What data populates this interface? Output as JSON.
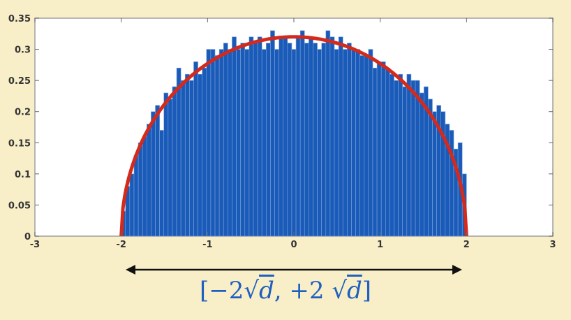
{
  "chart_data": {
    "type": "bar",
    "title": "",
    "xlabel": "",
    "ylabel": "",
    "xlim": [
      -3,
      3
    ],
    "ylim": [
      0,
      0.35
    ],
    "xticks": [
      "-3",
      "-2",
      "-1",
      "0",
      "1",
      "2",
      "3"
    ],
    "yticks": [
      "0",
      "0.05",
      "0.1",
      "0.15",
      "0.2",
      "0.25",
      "0.3",
      "0.35"
    ],
    "bin_range": [
      -2,
      2
    ],
    "bin_values": [
      0.04,
      0.08,
      0.1,
      0.13,
      0.15,
      0.16,
      0.18,
      0.2,
      0.21,
      0.17,
      0.23,
      0.22,
      0.24,
      0.27,
      0.25,
      0.26,
      0.25,
      0.28,
      0.26,
      0.27,
      0.3,
      0.3,
      0.29,
      0.3,
      0.31,
      0.3,
      0.32,
      0.3,
      0.31,
      0.3,
      0.32,
      0.31,
      0.32,
      0.3,
      0.31,
      0.33,
      0.3,
      0.32,
      0.32,
      0.31,
      0.3,
      0.32,
      0.33,
      0.31,
      0.32,
      0.31,
      0.3,
      0.31,
      0.33,
      0.32,
      0.3,
      0.32,
      0.3,
      0.31,
      0.3,
      0.3,
      0.29,
      0.29,
      0.3,
      0.27,
      0.28,
      0.28,
      0.27,
      0.26,
      0.25,
      0.26,
      0.24,
      0.26,
      0.25,
      0.25,
      0.23,
      0.24,
      0.22,
      0.2,
      0.21,
      0.2,
      0.18,
      0.17,
      0.14,
      0.15,
      0.1
    ],
    "curve": "semicircle",
    "curve_peak": 0.32,
    "grid": false,
    "bar_color": "#1a5ab8",
    "curve_color": "#d42a1c",
    "frame_color": "#a0a0a0"
  },
  "annotation": {
    "arrow": "double-headed",
    "interval_open": "[",
    "minus": "−2",
    "plus": ", +2 ",
    "var": "d",
    "interval_close": "]"
  }
}
